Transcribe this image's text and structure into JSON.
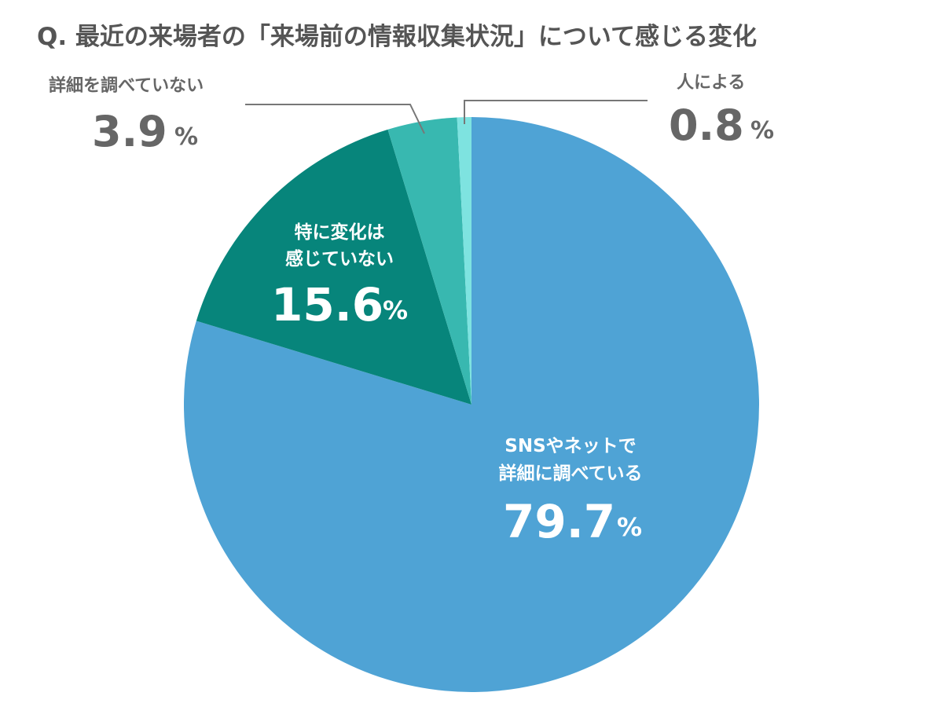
{
  "chart_data": {
    "type": "pie",
    "title": "Q. 最近の来場者の「来場前の情報収集状況」について感じる変化",
    "percent_sign": "%",
    "slices": [
      {
        "label_lines": [
          "SNSやネットで",
          "詳細に調べている"
        ],
        "value": 79.7,
        "value_text": "79.7",
        "color": "#4FA3D5"
      },
      {
        "label_lines": [
          "特に変化は",
          "感じていない"
        ],
        "value": 15.6,
        "value_text": "15.6",
        "color": "#07857B"
      },
      {
        "label_lines": [
          "詳細を調べていない"
        ],
        "value": 3.9,
        "value_text": "3.9",
        "color": "#38B8B0"
      },
      {
        "label_lines": [
          "人による"
        ],
        "value": 0.8,
        "value_text": "0.8",
        "color": "#7EE3E0"
      }
    ]
  }
}
